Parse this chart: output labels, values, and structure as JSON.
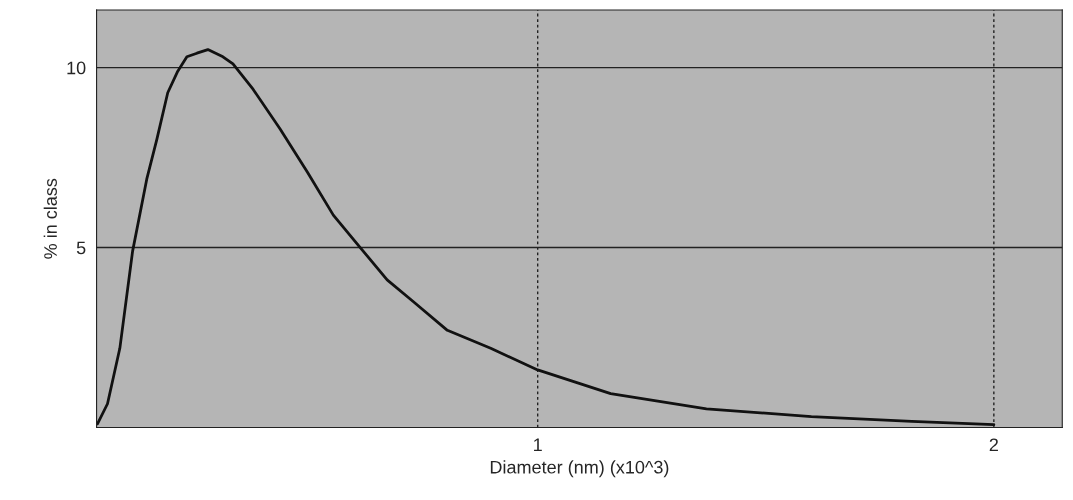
{
  "chart_data": {
    "type": "line",
    "xlabel": "Diameter (nm) (x10^3)",
    "ylabel": "% in class",
    "x": [
      0.035,
      0.057,
      0.084,
      0.112,
      0.143,
      0.165,
      0.189,
      0.211,
      0.231,
      0.253,
      0.277,
      0.31,
      0.332,
      0.376,
      0.435,
      0.495,
      0.552,
      0.611,
      0.67,
      0.727,
      0.802,
      0.897,
      1.0,
      1.16,
      1.37,
      1.6,
      1.82,
      2.0
    ],
    "series": [
      {
        "color": "#111111",
        "values": [
          0.1,
          0.66,
          2.2,
          4.9,
          6.9,
          8.0,
          9.3,
          9.9,
          10.3,
          10.4,
          10.5,
          10.3,
          10.1,
          9.4,
          8.3,
          7.1,
          5.9,
          5.0,
          4.1,
          3.5,
          2.7,
          2.2,
          1.6,
          0.94,
          0.52,
          0.3,
          0.17,
          0.08
        ]
      }
    ],
    "xlim": [
      0.033,
      2.15
    ],
    "ylim": [
      0,
      11.6
    ],
    "xticks": [
      1,
      2
    ],
    "yticks": [
      5,
      10
    ],
    "grid": true,
    "marker": "none",
    "line_style": "solid"
  }
}
